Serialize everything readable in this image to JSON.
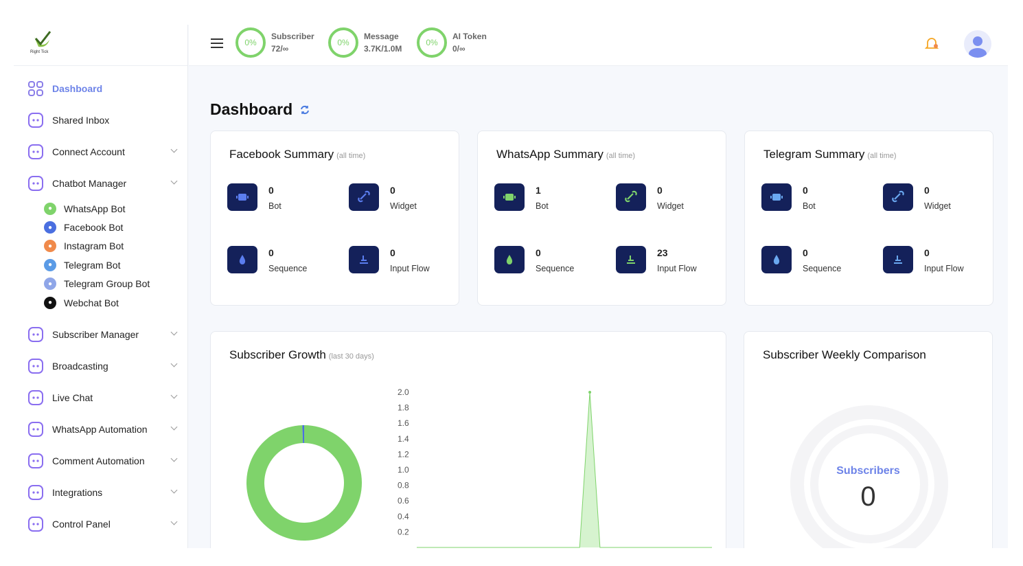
{
  "brand": {
    "name": "Right Tick"
  },
  "sidebar": {
    "items": [
      {
        "label": "Dashboard",
        "icon": "grid-icon",
        "active": true
      },
      {
        "label": "Shared Inbox",
        "icon": "inbox-icon"
      },
      {
        "label": "Connect Account",
        "icon": "link-icon",
        "chevron": true
      },
      {
        "label": "Chatbot Manager",
        "icon": "robot-icon",
        "chevron": true
      }
    ],
    "subitems": [
      {
        "label": "WhatsApp Bot",
        "icon": "whatsapp-icon",
        "color": "#7fd36b"
      },
      {
        "label": "Facebook Bot",
        "icon": "facebook-icon",
        "color": "#4a6fe0"
      },
      {
        "label": "Instagram Bot",
        "icon": "instagram-icon",
        "color": "#f08a4b"
      },
      {
        "label": "Telegram Bot",
        "icon": "telegram-icon",
        "color": "#5b9be6"
      },
      {
        "label": "Telegram Group Bot",
        "icon": "group-icon",
        "color": "#8fa6e8"
      },
      {
        "label": "Webchat Bot",
        "icon": "webchat-icon",
        "color": "#111111"
      }
    ],
    "items2": [
      {
        "label": "Subscriber Manager",
        "icon": "users-icon"
      },
      {
        "label": "Broadcasting",
        "icon": "send-icon"
      },
      {
        "label": "Live Chat",
        "icon": "chat-icon"
      },
      {
        "label": "WhatsApp Automation",
        "icon": "whatsapp-icon"
      },
      {
        "label": "Comment Automation",
        "icon": "comment-icon"
      },
      {
        "label": "Integrations",
        "icon": "puzzle-icon"
      },
      {
        "label": "Control Panel",
        "icon": "gear-icon"
      }
    ]
  },
  "usage": [
    {
      "percent": "0%",
      "label": "Subscriber",
      "value": "72/∞"
    },
    {
      "percent": "0%",
      "label": "Message",
      "value": "3.7K/1.0M"
    },
    {
      "percent": "0%",
      "label": "AI Token",
      "value": "0/∞"
    }
  ],
  "page": {
    "title": "Dashboard"
  },
  "summaries": [
    {
      "title": "Facebook Summary",
      "note": "(all time)",
      "accent": "#5b7ef0",
      "stats": [
        {
          "value": "0",
          "label": "Bot"
        },
        {
          "value": "0",
          "label": "Widget"
        },
        {
          "value": "0",
          "label": "Sequence"
        },
        {
          "value": "0",
          "label": "Input Flow"
        }
      ]
    },
    {
      "title": "WhatsApp Summary",
      "note": "(all time)",
      "accent": "#7fd36b",
      "stats": [
        {
          "value": "1",
          "label": "Bot"
        },
        {
          "value": "0",
          "label": "Widget"
        },
        {
          "value": "0",
          "label": "Sequence"
        },
        {
          "value": "23",
          "label": "Input Flow"
        }
      ]
    },
    {
      "title": "Telegram Summary",
      "note": "(all time)",
      "accent": "#6aa8f0",
      "stats": [
        {
          "value": "0",
          "label": "Bot"
        },
        {
          "value": "0",
          "label": "Widget"
        },
        {
          "value": "0",
          "label": "Sequence"
        },
        {
          "value": "0",
          "label": "Input Flow"
        }
      ]
    }
  ],
  "growth": {
    "title": "Subscriber Growth",
    "note": "(last 30 days)"
  },
  "weekly": {
    "title": "Subscriber Weekly Comparison",
    "label": "Subscribers",
    "value": "0"
  },
  "chart_data": [
    {
      "type": "pie",
      "donut": true,
      "values": [
        99.5,
        0.5
      ],
      "colors": [
        "#7fd36b",
        "#4a6fe0"
      ]
    },
    {
      "type": "area",
      "yticks": [
        "2.0",
        "1.8",
        "1.6",
        "1.4",
        "1.2",
        "1.0",
        "0.8",
        "0.6",
        "0.4",
        "0.2"
      ],
      "ylim": [
        0,
        2
      ],
      "values": [
        0,
        0,
        0,
        0,
        0,
        0,
        0,
        0,
        0,
        0,
        0,
        0,
        0,
        0,
        0,
        0,
        0,
        2,
        0,
        0,
        0,
        0,
        0,
        0,
        0,
        0,
        0,
        0,
        0,
        0
      ],
      "color": "#7fd36b"
    }
  ]
}
